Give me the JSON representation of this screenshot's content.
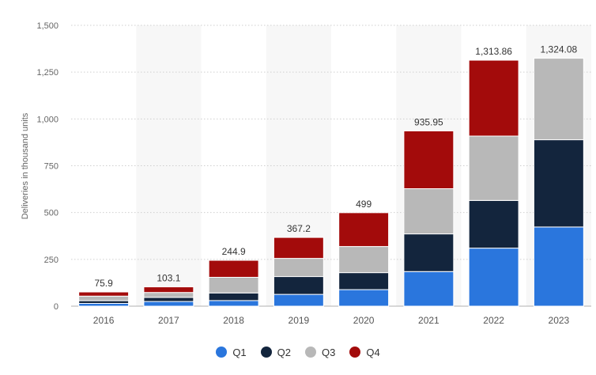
{
  "chart_data": {
    "type": "bar",
    "stacked": true,
    "ylabel": "Deliveries in thousand units",
    "xlabel": "",
    "ylim": [
      0,
      1500
    ],
    "yticks": [
      "0",
      "250",
      "500",
      "750",
      "1,000",
      "1,250",
      "1,500"
    ],
    "grid": true,
    "legend_position": "bottom",
    "categories": [
      "2016",
      "2017",
      "2018",
      "2019",
      "2020",
      "2021",
      "2022",
      "2023"
    ],
    "totals_labels": [
      "75.9",
      "103.1",
      "244.9",
      "367.2",
      "499",
      "935.95",
      "1,313.86",
      "1,324.08"
    ],
    "series": [
      {
        "name": "Q1",
        "color": "#2a76dd",
        "values": [
          14.8,
          25.0,
          30.0,
          63.0,
          88.4,
          184.8,
          310.0,
          422.9
        ]
      },
      {
        "name": "Q2",
        "color": "#13253d",
        "values": [
          14.4,
          22.0,
          40.7,
          95.2,
          90.7,
          201.3,
          254.7,
          466.1
        ]
      },
      {
        "name": "Q3",
        "color": "#b8b8b8",
        "values": [
          24.5,
          26.1,
          83.5,
          97.0,
          139.6,
          241.3,
          343.8,
          435.1
        ]
      },
      {
        "name": "Q4",
        "color": "#a30b0b",
        "values": [
          22.2,
          30.0,
          90.7,
          112.0,
          180.6,
          308.6,
          405.3,
          0
        ]
      }
    ]
  }
}
